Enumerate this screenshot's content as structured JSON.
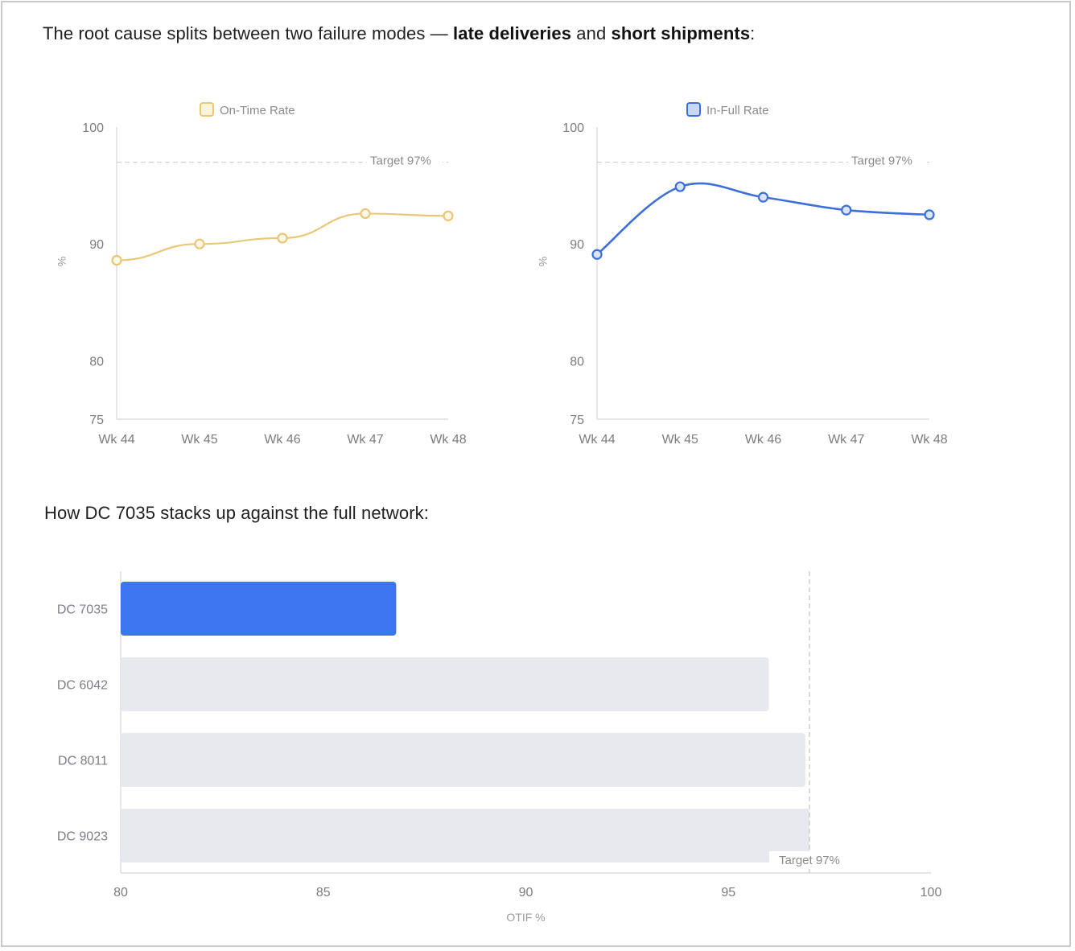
{
  "intro": {
    "prefix": "The root cause splits between two failure modes — ",
    "bold1": "late deliveries",
    "middle": " and ",
    "bold2": "short shipments",
    "suffix": ":"
  },
  "network_heading": "How DC 7035 stacks up against the full network:",
  "chart_data": [
    {
      "type": "line",
      "title": "",
      "legend": "On-Time Rate",
      "legend_position": "top",
      "x": [
        "Wk 44",
        "Wk 45",
        "Wk 46",
        "Wk 47",
        "Wk 48"
      ],
      "values": [
        88.6,
        90,
        90.5,
        92.6,
        92.4
      ],
      "ylabel": "%",
      "ylim": [
        75,
        100
      ],
      "yticks": [
        "100",
        "90",
        "80",
        "75"
      ],
      "target_value": 97,
      "target_label": "Target 97%",
      "color": "#e8c878",
      "smooth": false
    },
    {
      "type": "line",
      "title": "",
      "legend": "In-Full Rate",
      "legend_position": "top",
      "x": [
        "Wk 44",
        "Wk 45",
        "Wk 46",
        "Wk 47",
        "Wk 48"
      ],
      "values": [
        89.1,
        94.9,
        94,
        92.9,
        92.5
      ],
      "ylabel": "%",
      "ylim": [
        75,
        100
      ],
      "yticks": [
        "100",
        "90",
        "80",
        "75"
      ],
      "target_value": 97,
      "target_label": "Target 97%",
      "color": "#3d6fd8",
      "smooth": true
    },
    {
      "type": "bar",
      "orientation": "horizontal",
      "categories": [
        "DC 7035",
        "DC 6042",
        "DC 8011",
        "DC 9023"
      ],
      "values": [
        86.8,
        96,
        96.9,
        97
      ],
      "colors": [
        "#3d74f0",
        "#e8e9ee",
        "#e8e9ee",
        "#e8e9ee"
      ],
      "xlabel": "OTIF %",
      "xlim": [
        80,
        100
      ],
      "xticks": [
        "80",
        "85",
        "90",
        "95",
        "100"
      ],
      "target_value": 97,
      "target_label": "Target 97%"
    }
  ]
}
